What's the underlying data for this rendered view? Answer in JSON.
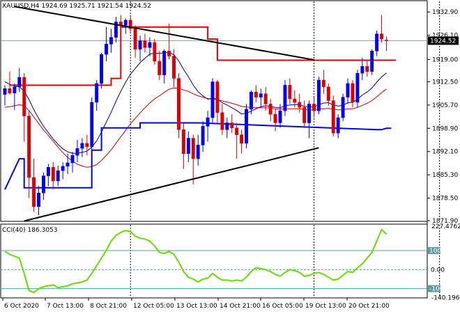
{
  "chart_data": [
    {
      "type": "candlestick",
      "title": "XAUUSD,H4  1924.69 1925.71 1921.54 1924.52",
      "symbol": "XAUUSD",
      "timeframe": "H4",
      "ohlc_readout": {
        "open": 1924.69,
        "high": 1925.71,
        "low": 1921.54,
        "close": 1924.52
      },
      "current_price_label": "1924.52",
      "y_ticks": [
        "1932.90",
        "1926.10",
        "1919.00",
        "1912.50",
        "1905.70",
        "1898.90",
        "1892.10",
        "1885.30",
        "1878.50",
        "1871.90"
      ],
      "ylim": [
        1871.9,
        1936.0
      ],
      "x_ticks": [
        "6 Oct 2020",
        "7 Oct 13:00",
        "8 Oct 21:00",
        "12 Oct 05:00",
        "13 Oct 13:00",
        "14 Oct 21:00",
        "16 Oct 05:00",
        "19 Oct 13:00",
        "20 Oct 21:00"
      ],
      "up_color": "#0000ff",
      "down_color": "#dd0000",
      "candles": [
        [
          1908.8,
          1911.5,
          1905.6,
          1910.5
        ],
        [
          1910.5,
          1915.5,
          1908.8,
          1909.2
        ],
        [
          1909.2,
          1912.0,
          1904.3,
          1911.0
        ],
        [
          1911.0,
          1916.5,
          1909.5,
          1913.8
        ],
        [
          1913.8,
          1915.0,
          1895.0,
          1902.5
        ],
        [
          1902.5,
          1904.0,
          1878.5,
          1884.5
        ],
        [
          1884.5,
          1890.0,
          1874.4,
          1876.0
        ],
        [
          1876.0,
          1882.0,
          1873.5,
          1880.0
        ],
        [
          1880.0,
          1886.0,
          1878.0,
          1885.0
        ],
        [
          1885.0,
          1888.5,
          1882.0,
          1887.5
        ],
        [
          1887.5,
          1889.0,
          1881.0,
          1883.5
        ],
        [
          1883.5,
          1888.0,
          1882.0,
          1886.5
        ],
        [
          1886.5,
          1889.0,
          1884.0,
          1887.8
        ],
        [
          1887.8,
          1891.5,
          1885.5,
          1888.8
        ],
        [
          1888.8,
          1892.0,
          1886.0,
          1891.0
        ],
        [
          1891.0,
          1895.5,
          1889.0,
          1893.0
        ],
        [
          1893.0,
          1896.0,
          1890.5,
          1894.5
        ],
        [
          1894.5,
          1897.0,
          1891.0,
          1893.5
        ],
        [
          1893.5,
          1908.0,
          1892.5,
          1906.5
        ],
        [
          1906.5,
          1913.0,
          1904.0,
          1912.0
        ],
        [
          1912.0,
          1921.0,
          1910.5,
          1920.5
        ],
        [
          1920.5,
          1928.5,
          1918.5,
          1923.5
        ],
        [
          1923.5,
          1928.0,
          1921.0,
          1925.5
        ],
        [
          1925.5,
          1931.5,
          1924.0,
          1930.0
        ],
        [
          1930.0,
          1932.0,
          1928.0,
          1929.0
        ],
        [
          1929.0,
          1931.0,
          1926.5,
          1930.5
        ],
        [
          1930.5,
          1932.0,
          1927.0,
          1928.0
        ],
        [
          1928.0,
          1929.0,
          1919.5,
          1922.0
        ],
        [
          1922.0,
          1926.0,
          1918.5,
          1924.5
        ],
        [
          1924.5,
          1926.5,
          1921.0,
          1922.5
        ],
        [
          1922.5,
          1925.5,
          1920.0,
          1924.0
        ],
        [
          1924.0,
          1925.0,
          1917.5,
          1918.5
        ],
        [
          1918.5,
          1921.5,
          1913.0,
          1914.5
        ],
        [
          1914.5,
          1922.0,
          1912.0,
          1921.5
        ],
        [
          1921.5,
          1929.5,
          1919.0,
          1920.0
        ],
        [
          1920.0,
          1922.0,
          1911.0,
          1913.5
        ],
        [
          1913.5,
          1915.0,
          1896.0,
          1898.5
        ],
        [
          1898.5,
          1900.5,
          1887.0,
          1891.5
        ],
        [
          1891.5,
          1898.0,
          1889.0,
          1896.0
        ],
        [
          1896.0,
          1897.0,
          1882.5,
          1890.0
        ],
        [
          1890.0,
          1897.0,
          1888.0,
          1894.0
        ],
        [
          1894.0,
          1901.0,
          1892.0,
          1899.5
        ],
        [
          1899.5,
          1904.0,
          1895.0,
          1902.0
        ],
        [
          1902.0,
          1913.5,
          1900.5,
          1912.5
        ],
        [
          1912.5,
          1913.0,
          1900.0,
          1903.5
        ],
        [
          1903.5,
          1906.0,
          1897.0,
          1898.5
        ],
        [
          1898.5,
          1902.0,
          1896.0,
          1900.5
        ],
        [
          1900.5,
          1903.0,
          1897.5,
          1899.0
        ],
        [
          1899.0,
          1900.5,
          1890.0,
          1897.0
        ],
        [
          1897.0,
          1898.5,
          1891.5,
          1894.5
        ],
        [
          1894.5,
          1906.0,
          1893.0,
          1904.5
        ],
        [
          1904.5,
          1910.0,
          1903.0,
          1909.5
        ],
        [
          1909.5,
          1911.5,
          1906.5,
          1908.0
        ],
        [
          1908.0,
          1910.5,
          1905.0,
          1909.0
        ],
        [
          1909.0,
          1911.0,
          1904.0,
          1906.0
        ],
        [
          1906.0,
          1907.5,
          1901.0,
          1903.0
        ],
        [
          1903.0,
          1904.5,
          1898.0,
          1900.5
        ],
        [
          1900.5,
          1906.0,
          1899.0,
          1904.0
        ],
        [
          1904.0,
          1913.0,
          1902.5,
          1911.5
        ],
        [
          1911.5,
          1913.5,
          1906.0,
          1907.5
        ],
        [
          1907.5,
          1910.0,
          1905.0,
          1906.5
        ],
        [
          1906.5,
          1909.0,
          1903.5,
          1905.0
        ],
        [
          1905.0,
          1907.0,
          1899.0,
          1900.5
        ],
        [
          1900.5,
          1907.0,
          1896.0,
          1906.0
        ],
        [
          1906.0,
          1908.0,
          1902.0,
          1904.0
        ],
        [
          1904.0,
          1914.0,
          1903.0,
          1913.0
        ],
        [
          1913.0,
          1916.0,
          1909.0,
          1911.0
        ],
        [
          1911.0,
          1912.0,
          1905.5,
          1907.0
        ],
        [
          1907.0,
          1908.5,
          1896.5,
          1897.5
        ],
        [
          1897.5,
          1903.0,
          1896.0,
          1902.0
        ],
        [
          1902.0,
          1909.0,
          1901.0,
          1908.0
        ],
        [
          1908.0,
          1913.5,
          1906.0,
          1912.0
        ],
        [
          1912.0,
          1913.0,
          1905.0,
          1906.5
        ],
        [
          1906.5,
          1916.0,
          1905.0,
          1915.0
        ],
        [
          1915.0,
          1919.5,
          1913.0,
          1917.0
        ],
        [
          1917.0,
          1919.0,
          1914.0,
          1915.5
        ],
        [
          1915.5,
          1922.0,
          1914.5,
          1921.5
        ],
        [
          1921.5,
          1927.5,
          1920.0,
          1926.5
        ],
        [
          1926.5,
          1932.0,
          1924.0,
          1925.0
        ],
        [
          1924.69,
          1925.71,
          1921.54,
          1924.52
        ]
      ],
      "overlays": {
        "ma_dark_blue": [
          1912.5,
          1911.8,
          1911.2,
          1911.0,
          1909.8,
          1907.3,
          1904.3,
          1901.8,
          1899.5,
          1897.6,
          1895.8,
          1894.2,
          1892.9,
          1892.0,
          1891.6,
          1891.6,
          1891.9,
          1892.2,
          1893.4,
          1895.2,
          1897.8,
          1900.7,
          1903.6,
          1906.8,
          1909.7,
          1912.4,
          1914.7,
          1916.4,
          1918.1,
          1919.4,
          1920.6,
          1920.9,
          1920.8,
          1921.0,
          1921.1,
          1920.4,
          1918.6,
          1916.1,
          1914.0,
          1911.5,
          1909.6,
          1908.4,
          1907.4,
          1907.7,
          1907.4,
          1906.4,
          1905.7,
          1904.9,
          1904.1,
          1903.1,
          1903.3,
          1903.9,
          1904.6,
          1905.2,
          1905.5,
          1905.3,
          1905.0,
          1904.9,
          1905.5,
          1905.7,
          1905.8,
          1905.8,
          1905.3,
          1905.2,
          1905.1,
          1905.8,
          1906.3,
          1906.4,
          1905.7,
          1905.4,
          1905.6,
          1906.4,
          1906.5,
          1907.4,
          1908.6,
          1909.5,
          1910.7,
          1912.4,
          1913.9,
          1915.1
        ],
        "ma_red": [
          1905.0,
          1905.2,
          1905.5,
          1905.8,
          1905.5,
          1904.1,
          1902.2,
          1900.3,
          1898.4,
          1896.8,
          1895.1,
          1893.4,
          1891.8,
          1890.4,
          1889.3,
          1888.4,
          1887.9,
          1887.5,
          1887.7,
          1888.3,
          1889.5,
          1891.0,
          1892.6,
          1894.5,
          1896.4,
          1898.3,
          1900.2,
          1901.8,
          1903.4,
          1904.9,
          1906.3,
          1907.5,
          1908.4,
          1909.4,
          1910.3,
          1910.7,
          1910.6,
          1910.1,
          1909.7,
          1909.0,
          1908.4,
          1908.0,
          1907.6,
          1907.5,
          1907.3,
          1906.9,
          1906.6,
          1906.2,
          1905.8,
          1905.3,
          1905.1,
          1905.0,
          1904.9,
          1904.9,
          1904.9,
          1904.8,
          1904.6,
          1904.5,
          1904.6,
          1904.6,
          1904.6,
          1904.6,
          1904.4,
          1904.3,
          1904.3,
          1904.5,
          1904.6,
          1904.7,
          1904.5,
          1904.3,
          1904.3,
          1904.6,
          1904.6,
          1905.0,
          1905.6,
          1906.2,
          1907.0,
          1908.1,
          1909.3,
          1910.4
        ],
        "step_red": [
          [
            1,
            1911.5
          ],
          [
            22,
            1911.5
          ],
          [
            22,
            1913.5
          ],
          [
            24,
            1913.5
          ],
          [
            24,
            1928.5
          ],
          [
            42,
            1928.5
          ],
          [
            42,
            1925.0
          ],
          [
            44,
            1925.0
          ],
          [
            44,
            1918.8
          ],
          [
            81,
            1918.8
          ]
        ],
        "step_blue": [
          [
            0,
            1881.0
          ],
          [
            3,
            1890.0
          ],
          [
            4,
            1890.0
          ],
          [
            4,
            1881.5
          ],
          [
            18,
            1881.5
          ],
          [
            18,
            1892.5
          ],
          [
            20,
            1892.5
          ],
          [
            20,
            1899.0
          ],
          [
            28,
            1899.0
          ],
          [
            28,
            1900.5
          ],
          [
            40,
            1900.5
          ],
          [
            77,
            1898.5
          ],
          [
            78,
            1898.5
          ],
          [
            79,
            1898.9
          ],
          [
            80,
            1898.9
          ]
        ]
      },
      "trendlines": [
        {
          "from": [
            2,
            1934.5
          ],
          "to": [
            64,
            1918.9
          ]
        },
        {
          "from": [
            4,
            1871.8
          ],
          "to": [
            65,
            1893.2
          ]
        }
      ],
      "vlines_dotted_at": [
        26,
        64,
        90
      ]
    },
    {
      "type": "line",
      "title": "CCI(40) 186.3053",
      "indicator": "CCI",
      "period": 40,
      "value_label": "186.3053",
      "max_label": "227.4762",
      "min_label": "-140.1965",
      "levels": [
        100,
        0,
        -100
      ],
      "level_labels": [
        "100",
        "0.00",
        "-100"
      ],
      "ylim": [
        -145,
        235
      ],
      "color": "#66dd00",
      "series": [
        {
          "values": [
            95,
            80,
            70,
            60,
            -20,
            -110,
            -120,
            -100,
            -90,
            -85,
            -80,
            -95,
            -90,
            -85,
            -75,
            -70,
            -65,
            -55,
            -20,
            20,
            60,
            100,
            150,
            180,
            195,
            205,
            200,
            175,
            165,
            160,
            150,
            125,
            90,
            85,
            95,
            80,
            40,
            -10,
            -40,
            -50,
            -65,
            -50,
            -45,
            -20,
            -40,
            -55,
            -55,
            -60,
            -55,
            -60,
            -40,
            -10,
            10,
            5,
            0,
            -10,
            -25,
            -35,
            -15,
            0,
            -5,
            -15,
            -35,
            -30,
            -20,
            -15,
            -25,
            -40,
            -55,
            -50,
            -30,
            -10,
            -15,
            10,
            30,
            60,
            90,
            150,
            210,
            186
          ]
        }
      ]
    }
  ]
}
